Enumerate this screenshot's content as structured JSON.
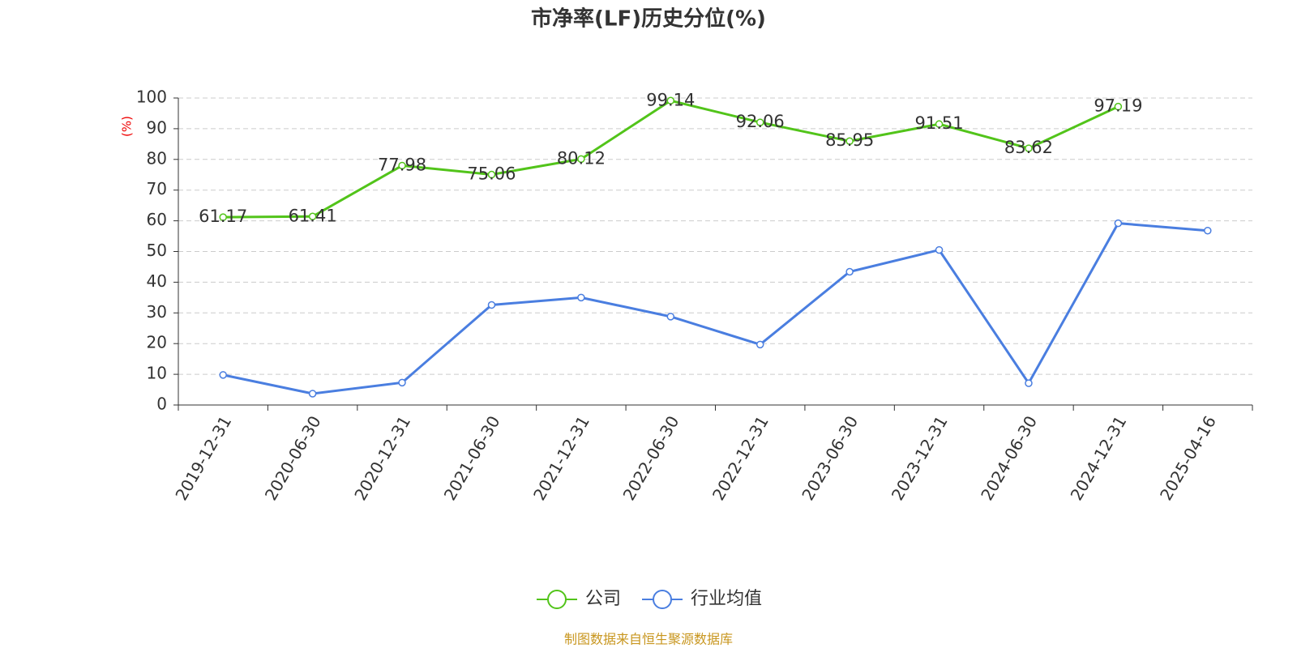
{
  "chart_data": {
    "type": "line",
    "title": "市净率(LF)历史分位(%)",
    "y_label": "(%)",
    "source": "制图数据来自恒生聚源数据库",
    "categories": [
      "2019-12-31",
      "2020-06-30",
      "2020-12-31",
      "2021-06-30",
      "2021-12-31",
      "2022-06-30",
      "2022-12-31",
      "2023-06-30",
      "2023-12-31",
      "2024-06-30",
      "2024-12-31",
      "2025-04-16"
    ],
    "series": [
      {
        "name": "公司",
        "color": "#52c41a",
        "show_labels": true,
        "values": [
          61.17,
          61.41,
          77.98,
          75.06,
          80.12,
          99.14,
          92.06,
          85.95,
          91.51,
          83.62,
          97.19,
          null
        ]
      },
      {
        "name": "行业均值",
        "color": "#4a7ee0",
        "show_labels": false,
        "values": [
          9.8,
          3.7,
          7.3,
          32.6,
          35.0,
          28.8,
          19.7,
          43.4,
          50.5,
          7.1,
          59.2,
          56.8
        ]
      }
    ],
    "ylim": [
      0,
      100
    ],
    "yticks": [
      0,
      10,
      20,
      30,
      40,
      50,
      60,
      70,
      80,
      90,
      100
    ],
    "grid": true
  }
}
